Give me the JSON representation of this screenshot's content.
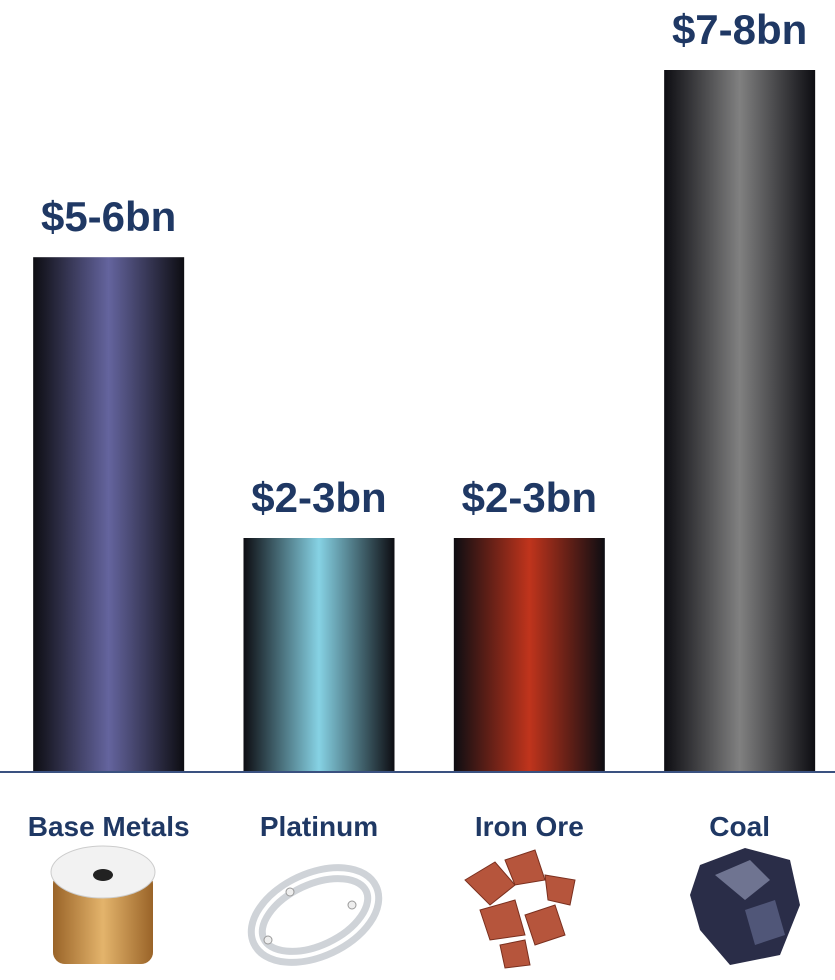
{
  "chart_data": {
    "type": "bar",
    "categories": [
      "Base Metals",
      "Platinum",
      "Iron Ore",
      "Coal"
    ],
    "values": [
      5.5,
      2.5,
      2.5,
      7.5
    ],
    "value_labels": [
      "$5-6bn",
      "$2-3bn",
      "$2-3bn",
      "$7-8bn"
    ],
    "colors": [
      "#64649e",
      "#86d2e4",
      "#c0341c",
      "#808080"
    ]
  }
}
